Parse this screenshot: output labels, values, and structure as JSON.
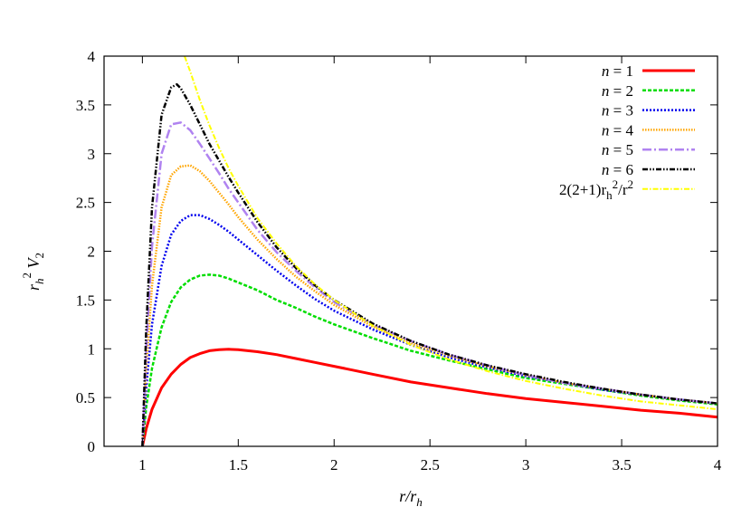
{
  "chart_data": {
    "type": "line",
    "xlabel": "r/r_h",
    "ylabel": "r_h^2 V_2",
    "xlim": [
      0.8,
      4
    ],
    "ylim": [
      0,
      4
    ],
    "x_ticks": [
      1,
      1.5,
      2,
      2.5,
      3,
      3.5,
      4
    ],
    "x_tick_labels": [
      "1",
      "1.5",
      "2",
      "2.5",
      "3",
      "3.5",
      "4"
    ],
    "y_ticks": [
      0,
      0.5,
      1,
      1.5,
      2,
      2.5,
      3,
      3.5,
      4
    ],
    "y_tick_labels": [
      "0",
      "0.5",
      "1",
      "1.5",
      "2",
      "2.5",
      "3",
      "3.5",
      "4"
    ],
    "grid": false,
    "legend_position": "top-right",
    "series": [
      {
        "name": "n = 1",
        "color": "#ff0000",
        "dash": "solid",
        "width": 3,
        "x": [
          1.0,
          1.02,
          1.05,
          1.1,
          1.15,
          1.2,
          1.25,
          1.3,
          1.35,
          1.4,
          1.45,
          1.5,
          1.6,
          1.7,
          1.8,
          1.9,
          2.0,
          2.2,
          2.4,
          2.6,
          2.8,
          3.0,
          3.2,
          3.4,
          3.6,
          3.8,
          4.0
        ],
        "y": [
          0.0,
          0.18,
          0.38,
          0.6,
          0.74,
          0.84,
          0.91,
          0.95,
          0.98,
          0.99,
          0.995,
          0.99,
          0.97,
          0.94,
          0.9,
          0.86,
          0.82,
          0.74,
          0.66,
          0.6,
          0.54,
          0.49,
          0.45,
          0.41,
          0.37,
          0.34,
          0.3
        ]
      },
      {
        "name": "n = 2",
        "color": "#00dd00",
        "dash": "4,2",
        "width": 2.5,
        "x": [
          1.0,
          1.02,
          1.05,
          1.1,
          1.15,
          1.2,
          1.25,
          1.3,
          1.35,
          1.4,
          1.45,
          1.5,
          1.6,
          1.7,
          1.8,
          1.9,
          2.0,
          2.2,
          2.4,
          2.6,
          2.8,
          3.0,
          3.2,
          3.4,
          3.6,
          3.8,
          4.0
        ],
        "y": [
          0.0,
          0.4,
          0.8,
          1.22,
          1.48,
          1.63,
          1.71,
          1.75,
          1.76,
          1.75,
          1.72,
          1.68,
          1.6,
          1.5,
          1.42,
          1.33,
          1.25,
          1.11,
          0.98,
          0.88,
          0.79,
          0.7,
          0.64,
          0.58,
          0.52,
          0.47,
          0.43
        ]
      },
      {
        "name": "n = 3",
        "color": "#0000ee",
        "dash": "2,2",
        "width": 2.5,
        "x": [
          1.0,
          1.02,
          1.05,
          1.1,
          1.15,
          1.2,
          1.25,
          1.3,
          1.35,
          1.4,
          1.45,
          1.5,
          1.6,
          1.7,
          1.8,
          1.9,
          2.0,
          2.2,
          2.4,
          2.6,
          2.8,
          3.0,
          3.2,
          3.4,
          3.6,
          3.8,
          4.0
        ],
        "y": [
          0.0,
          0.6,
          1.25,
          1.85,
          2.17,
          2.31,
          2.37,
          2.37,
          2.33,
          2.27,
          2.2,
          2.12,
          1.96,
          1.8,
          1.65,
          1.51,
          1.39,
          1.2,
          1.04,
          0.91,
          0.81,
          0.72,
          0.65,
          0.58,
          0.53,
          0.48,
          0.44
        ]
      },
      {
        "name": "n = 4",
        "color": "#ffa500",
        "dash": "1.5,1.5",
        "width": 2.5,
        "x": [
          1.0,
          1.02,
          1.05,
          1.1,
          1.15,
          1.2,
          1.25,
          1.3,
          1.35,
          1.4,
          1.45,
          1.5,
          1.6,
          1.7,
          1.8,
          1.9,
          2.0,
          2.2,
          2.4,
          2.6,
          2.8,
          3.0,
          3.2,
          3.4,
          3.6,
          3.8,
          4.0
        ],
        "y": [
          0.0,
          0.8,
          1.65,
          2.45,
          2.78,
          2.87,
          2.88,
          2.82,
          2.72,
          2.6,
          2.48,
          2.35,
          2.12,
          1.92,
          1.74,
          1.59,
          1.45,
          1.23,
          1.06,
          0.93,
          0.82,
          0.73,
          0.65,
          0.59,
          0.53,
          0.48,
          0.44
        ]
      },
      {
        "name": "n = 5",
        "color": "#b083f0",
        "dash": "10,3,2,3",
        "width": 2.5,
        "x": [
          1.0,
          1.02,
          1.05,
          1.1,
          1.15,
          1.2,
          1.25,
          1.3,
          1.35,
          1.4,
          1.45,
          1.5,
          1.6,
          1.7,
          1.8,
          1.9,
          2.0,
          2.2,
          2.4,
          2.6,
          2.8,
          3.0,
          3.2,
          3.4,
          3.6,
          3.8,
          4.0
        ],
        "y": [
          0.0,
          1.0,
          2.05,
          3.0,
          3.3,
          3.32,
          3.24,
          3.1,
          2.95,
          2.8,
          2.64,
          2.5,
          2.22,
          1.99,
          1.8,
          1.63,
          1.48,
          1.25,
          1.08,
          0.94,
          0.83,
          0.73,
          0.65,
          0.59,
          0.53,
          0.48,
          0.44
        ]
      },
      {
        "name": "n = 6",
        "color": "#000000",
        "dash": "6,2,1.5,2,1.5,2",
        "width": 2.5,
        "x": [
          1.0,
          1.02,
          1.05,
          1.1,
          1.15,
          1.18,
          1.2,
          1.25,
          1.3,
          1.35,
          1.4,
          1.45,
          1.5,
          1.6,
          1.7,
          1.8,
          1.9,
          2.0,
          2.2,
          2.4,
          2.6,
          2.8,
          3.0,
          3.2,
          3.4,
          3.6,
          3.8,
          4.0
        ],
        "y": [
          0.0,
          1.2,
          2.45,
          3.4,
          3.68,
          3.71,
          3.67,
          3.5,
          3.3,
          3.1,
          2.93,
          2.76,
          2.6,
          2.3,
          2.04,
          1.83,
          1.65,
          1.5,
          1.26,
          1.08,
          0.94,
          0.83,
          0.74,
          0.66,
          0.59,
          0.53,
          0.48,
          0.44
        ]
      },
      {
        "name": "2(2+1)r_h^2/r^2",
        "color": "#ffff00",
        "dash": "6,2,1.5,2",
        "width": 2,
        "x": [
          1.22,
          1.25,
          1.3,
          1.35,
          1.4,
          1.45,
          1.5,
          1.6,
          1.7,
          1.8,
          1.9,
          2.0,
          2.2,
          2.4,
          2.6,
          2.8,
          3.0,
          3.2,
          3.4,
          3.6,
          3.8,
          4.0
        ],
        "y": [
          4.0,
          3.84,
          3.55,
          3.29,
          3.06,
          2.85,
          2.67,
          2.34,
          2.08,
          1.85,
          1.66,
          1.5,
          1.24,
          1.04,
          0.89,
          0.77,
          0.67,
          0.59,
          0.52,
          0.46,
          0.42,
          0.38
        ]
      }
    ]
  }
}
